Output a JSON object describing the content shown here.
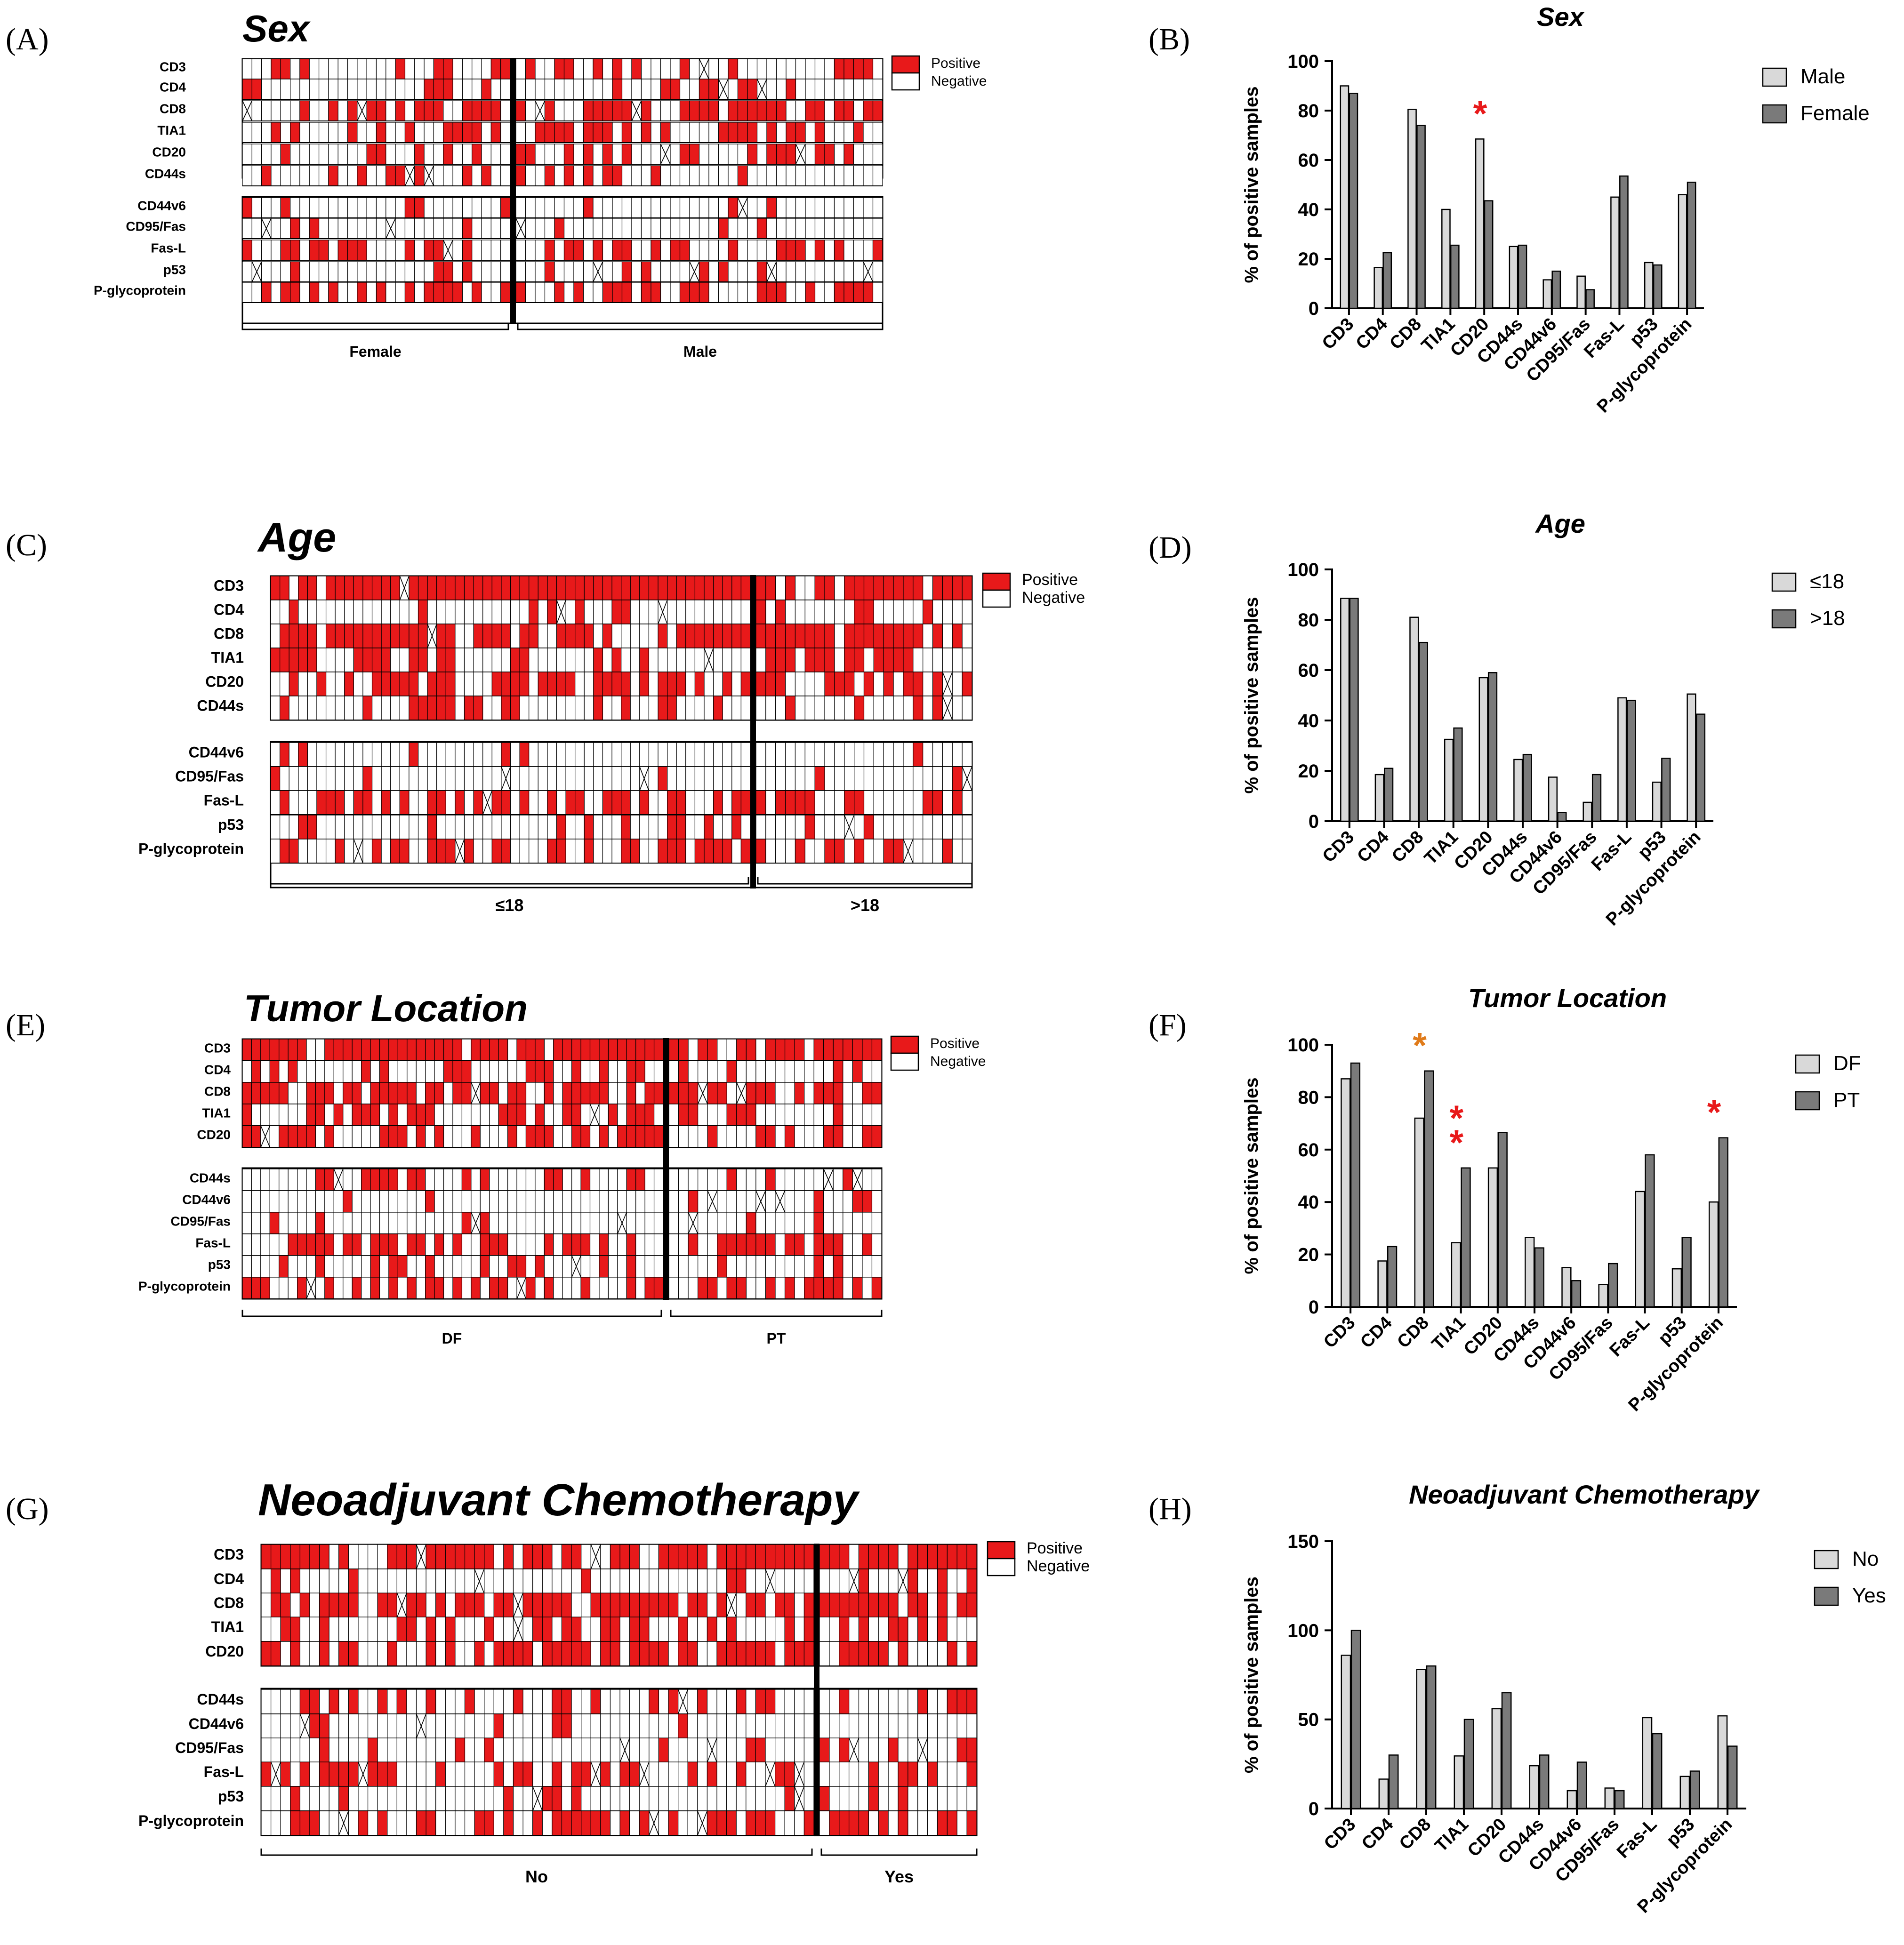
{
  "markers": [
    "CD3",
    "CD4",
    "CD8",
    "TIA1",
    "CD20",
    "CD44s",
    "CD44v6",
    "CD95/Fas",
    "Fas-L",
    "p53",
    "P-glycoprotein"
  ],
  "legend_heatmap": {
    "positive": "Positive",
    "negative": "Negative"
  },
  "y_axis_label": "% of positive samples",
  "colors": {
    "positive": "#e8191a",
    "bar_light": "#d9d9d9",
    "bar_dark": "#7a7a7a",
    "star_red": "#e8191a",
    "star_orange": "#e07b1a",
    "grid_line": "#000000"
  },
  "heatmaps": [
    {
      "panel_label": "(A)",
      "title": "Sex",
      "split_after_marker": "CD44s",
      "groups": [
        {
          "label": "Female",
          "samples": 28
        },
        {
          "label": "Male",
          "samples": 38
        }
      ]
    },
    {
      "panel_label": "(C)",
      "title": "Age",
      "split_after_marker": "CD44s",
      "groups": [
        {
          "label": "≤18",
          "samples": 52
        },
        {
          "label": ">18",
          "samples": 22
        }
      ]
    },
    {
      "panel_label": "(E)",
      "title": "Tumor Location",
      "split_after_marker": "CD20",
      "groups": [
        {
          "label": "DF",
          "samples": 46
        },
        {
          "label": "PT",
          "samples": 22
        }
      ]
    },
    {
      "panel_label": "(G)",
      "title": "Neoadjuvant Chemotherapy",
      "split_after_marker": "CD20",
      "groups": [
        {
          "label": "No",
          "samples": 57
        },
        {
          "label": "Yes",
          "samples": 16
        }
      ]
    }
  ],
  "chart_data": [
    {
      "panel_label": "(B)",
      "type": "bar",
      "title": "Sex",
      "ylabel": "% of positive samples",
      "ylim": [
        0,
        100
      ],
      "yticks": [
        0,
        20,
        40,
        60,
        80,
        100
      ],
      "categories": [
        "CD3",
        "CD4",
        "CD8",
        "TIA1",
        "CD20",
        "CD44s",
        "CD44v6",
        "CD95/Fas",
        "Fas-L",
        "p53",
        "P-glycoprotein"
      ],
      "series": [
        {
          "name": "Male",
          "values": [
            90,
            16.5,
            80.5,
            40,
            68.5,
            25,
            11.5,
            13,
            45,
            18.5,
            46
          ]
        },
        {
          "name": "Female",
          "values": [
            87,
            22.5,
            74,
            25.5,
            43.5,
            25.5,
            15,
            7.5,
            53.5,
            17.5,
            51
          ]
        }
      ],
      "significance": [
        {
          "category": "CD20",
          "marks": "*",
          "color": "red"
        }
      ]
    },
    {
      "panel_label": "(D)",
      "type": "bar",
      "title": "Age",
      "ylabel": "% of positive samples",
      "ylim": [
        0,
        100
      ],
      "yticks": [
        0,
        20,
        40,
        60,
        80,
        100
      ],
      "categories": [
        "CD3",
        "CD4",
        "CD8",
        "TIA1",
        "CD20",
        "CD44s",
        "CD44v6",
        "CD95/Fas",
        "Fas-L",
        "p53",
        "P-glycoprotein"
      ],
      "series": [
        {
          "name": "≤18",
          "values": [
            88.5,
            18.5,
            81,
            32.5,
            57,
            24.5,
            17.5,
            7.5,
            49,
            15.5,
            50.5
          ]
        },
        {
          "name": ">18",
          "values": [
            88.5,
            21,
            71,
            37,
            59,
            26.5,
            3.5,
            18.5,
            48,
            25,
            42.5
          ]
        }
      ],
      "significance": []
    },
    {
      "panel_label": "(F)",
      "type": "bar",
      "title": "Tumor Location",
      "ylabel": "% of positive samples",
      "ylim": [
        0,
        100
      ],
      "yticks": [
        0,
        20,
        40,
        60,
        80,
        100
      ],
      "categories": [
        "CD3",
        "CD4",
        "CD8",
        "TIA1",
        "CD20",
        "CD44s",
        "CD44v6",
        "CD95/Fas",
        "Fas-L",
        "p53",
        "P-glycoprotein"
      ],
      "series": [
        {
          "name": "DF",
          "values": [
            87,
            17.5,
            72,
            24.5,
            53,
            26.5,
            15,
            8.5,
            44,
            14.5,
            40
          ]
        },
        {
          "name": "PT",
          "values": [
            93,
            23,
            90,
            53,
            66.5,
            22.5,
            10,
            16.5,
            58,
            26.5,
            64.5
          ]
        }
      ],
      "significance": [
        {
          "category": "CD8",
          "marks": "*",
          "color": "orange"
        },
        {
          "category": "TIA1",
          "marks": "**",
          "color": "red"
        },
        {
          "category": "P-glycoprotein",
          "marks": "*",
          "color": "red"
        }
      ]
    },
    {
      "panel_label": "(H)",
      "type": "bar",
      "title": "Neoadjuvant Chemotherapy",
      "ylabel": "% of positive samples",
      "ylim": [
        0,
        150
      ],
      "yticks": [
        0,
        50,
        100,
        150
      ],
      "categories": [
        "CD3",
        "CD4",
        "CD8",
        "TIA1",
        "CD20",
        "CD44s",
        "CD44v6",
        "CD95/Fas",
        "Fas-L",
        "p53",
        "P-glycoprotein"
      ],
      "series": [
        {
          "name": "No",
          "values": [
            86,
            16.5,
            78,
            29.5,
            56,
            24,
            10,
            11.5,
            51,
            18,
            52
          ]
        },
        {
          "name": "Yes",
          "values": [
            100,
            30,
            80,
            50,
            65,
            30,
            26,
            10,
            42,
            21,
            35
          ]
        }
      ],
      "significance": []
    }
  ]
}
